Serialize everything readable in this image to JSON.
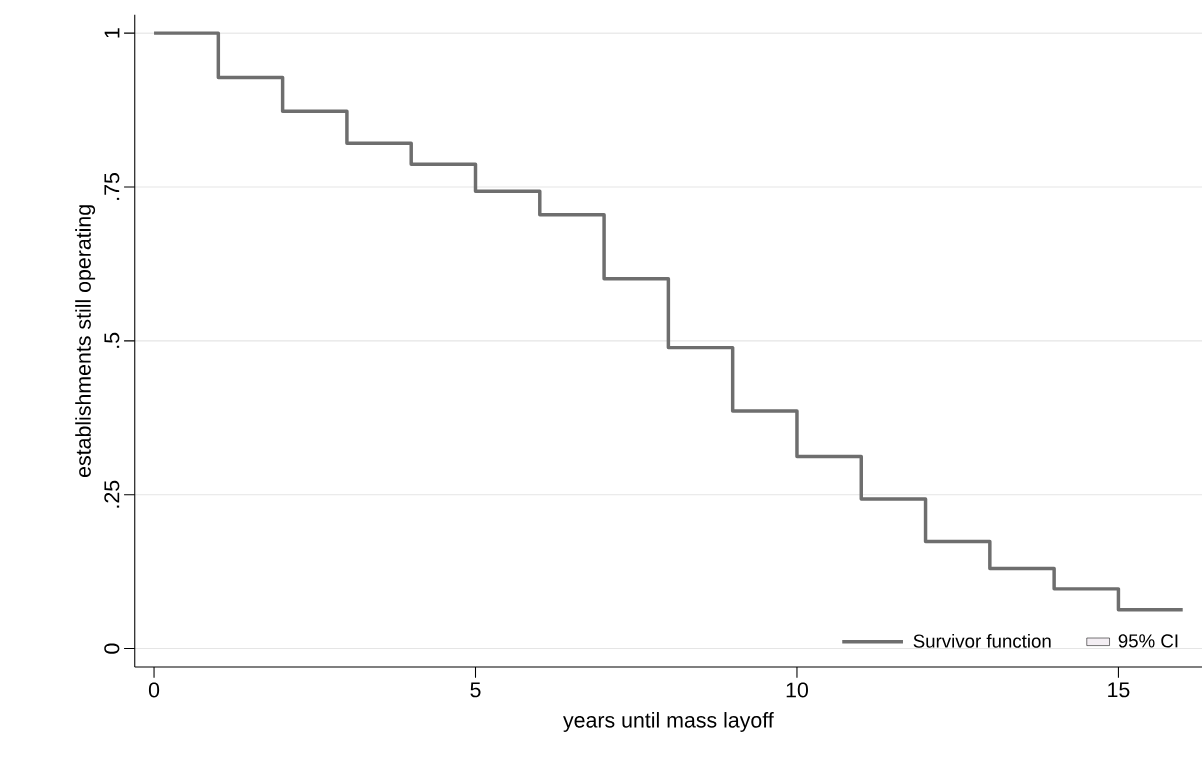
{
  "chart_data": {
    "type": "step",
    "xlabel": "years until mass layoff",
    "ylabel": "establishments still operating",
    "x": [
      0,
      1,
      2,
      3,
      4,
      5,
      6,
      7,
      8,
      9,
      10,
      11,
      12,
      13,
      14,
      15,
      16
    ],
    "series": [
      {
        "name": "Survivor function",
        "color": "#6e6e6e",
        "values": [
          1.0,
          0.928,
          0.873,
          0.821,
          0.787,
          0.743,
          0.705,
          0.601,
          0.489,
          0.386,
          0.312,
          0.243,
          0.174,
          0.13,
          0.097,
          0.063,
          0.063
        ]
      },
      {
        "name": "95% CI",
        "type": "area",
        "color": "#f3eef3",
        "values": [
          null,
          null,
          null,
          null,
          null,
          null,
          null,
          null,
          null,
          null,
          null,
          null,
          null,
          null,
          null,
          null,
          null
        ]
      }
    ],
    "xlim": [
      -0.3,
      16.3
    ],
    "ylim": [
      -0.03,
      1.03
    ],
    "xticks": [
      0,
      5,
      10,
      15
    ],
    "yticks": [
      0,
      {
        "value": 0.25,
        "label": ".25"
      },
      {
        "value": 0.5,
        "label": ".5"
      },
      {
        "value": 0.75,
        "label": ".75"
      },
      1
    ],
    "grid": "y",
    "legend": "bottom right"
  }
}
